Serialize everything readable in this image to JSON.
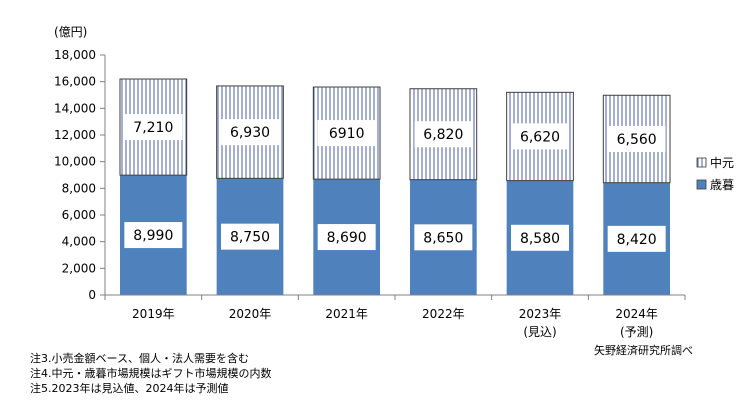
{
  "chart_data": {
    "type": "bar",
    "stacked": true,
    "unit_label": "(億円)",
    "categories": [
      "2019年",
      "2020年",
      "2021年",
      "2022年",
      "2023年",
      "2024年"
    ],
    "category_sublabels": [
      "",
      "",
      "",
      "",
      "(見込)",
      "(予測)"
    ],
    "series": [
      {
        "name": "歳暮",
        "values": [
          8990,
          8750,
          8690,
          8650,
          8580,
          8420
        ],
        "labels": [
          "8,990",
          "8,750",
          "8,690",
          "8,650",
          "8,580",
          "8,420"
        ],
        "color": "#4f81bd",
        "pattern": "solid"
      },
      {
        "name": "中元",
        "values": [
          7210,
          6930,
          6910,
          6820,
          6620,
          6560
        ],
        "labels": [
          "7,210",
          "6,930",
          "6910",
          "6,820",
          "6,620",
          "6,560"
        ],
        "color": "#4f5fa0",
        "pattern": "vertical-lines"
      }
    ],
    "yticks": [
      "0",
      "2,000",
      "4,000",
      "6,000",
      "8,000",
      "10,000",
      "12,000",
      "14,000",
      "16,000",
      "18,000"
    ],
    "ylim": [
      0,
      18000
    ],
    "legend_position": "right",
    "grid": false
  },
  "notes": [
    "注3.小売金額ベース、個人・法人需要を含む",
    "注4.中元・歳暮市場規模はギフト市場規模の内数",
    "注5.2023年は見込値、2024年は予測値"
  ],
  "source": "矢野経済研究所調べ"
}
